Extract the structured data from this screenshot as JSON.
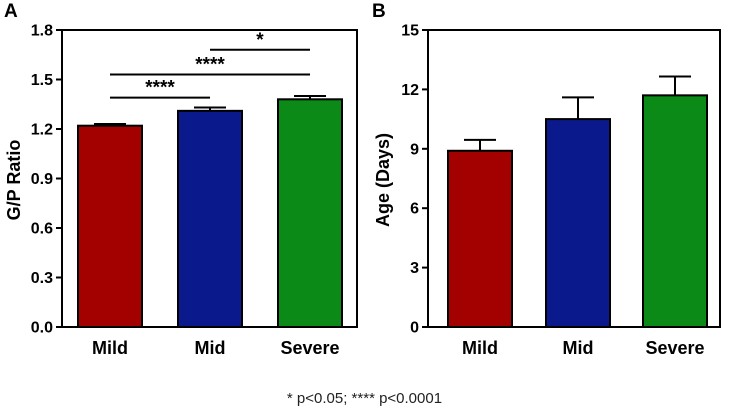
{
  "footnote": "* p<0.05; **** p<0.0001",
  "chart_data": [
    {
      "panel": "A",
      "type": "bar",
      "ylabel": "G/P Ratio",
      "xlabel": "",
      "categories": [
        "Mild",
        "Mid",
        "Severe"
      ],
      "values": [
        1.22,
        1.31,
        1.38
      ],
      "errors": [
        0.01,
        0.02,
        0.02
      ],
      "colors": [
        "#a30000",
        "#0a1a8c",
        "#0b8a17"
      ],
      "ylim": [
        0.0,
        1.8
      ],
      "yticks": [
        "0.0",
        "0.3",
        "0.6",
        "0.9",
        "1.2",
        "1.5",
        "1.8"
      ],
      "significance": [
        {
          "from": 0,
          "to": 1,
          "y": 1.39,
          "label": "****"
        },
        {
          "from": 0,
          "to": 2,
          "y": 1.53,
          "label": "****"
        },
        {
          "from": 1,
          "to": 2,
          "y": 1.68,
          "label": "*"
        }
      ]
    },
    {
      "panel": "B",
      "type": "bar",
      "ylabel": "Age (Days)",
      "xlabel": "",
      "categories": [
        "Mild",
        "Mid",
        "Severe"
      ],
      "values": [
        8.9,
        10.5,
        11.7
      ],
      "errors": [
        0.55,
        1.1,
        0.95
      ],
      "colors": [
        "#a30000",
        "#0a1a8c",
        "#0b8a17"
      ],
      "ylim": [
        0,
        15
      ],
      "yticks": [
        "0",
        "3",
        "6",
        "9",
        "12",
        "15"
      ],
      "significance": []
    }
  ]
}
